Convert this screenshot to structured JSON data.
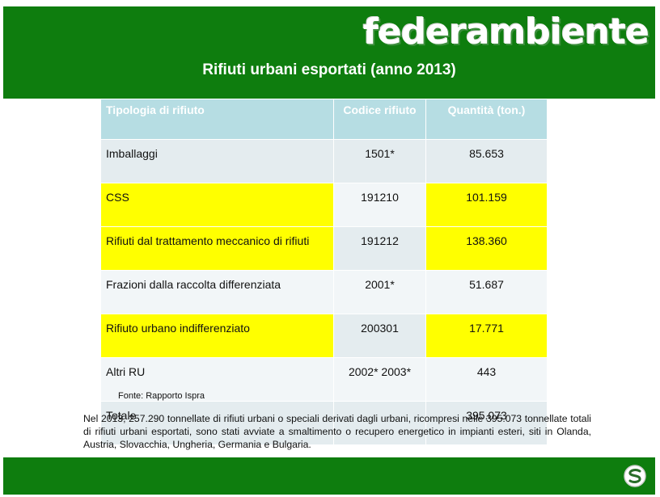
{
  "header": {
    "brand": "federambiente",
    "title": "Rifiuti urbani esportati (anno 2013)"
  },
  "table": {
    "columns": [
      "Tipologia di rifiuto",
      "Codice rifiuto",
      "Quantità (ton.)"
    ],
    "rows": [
      [
        "Imballaggi",
        "1501*",
        "85.653"
      ],
      [
        "CSS",
        "191210",
        "101.159"
      ],
      [
        "Rifiuti dal trattamento meccanico di rifiuti",
        "191212",
        "138.360"
      ],
      [
        "Frazioni dalla raccolta differenziata",
        "2001*",
        "51.687"
      ],
      [
        "Rifiuto urbano indifferenziato",
        "200301",
        "17.771"
      ],
      [
        "Altri RU",
        "2002* 2003*",
        "443"
      ],
      [
        "Totale",
        "",
        "395.073"
      ]
    ],
    "highlight_color": "#ffff00"
  },
  "source": "Fonte: Rapporto Ispra",
  "note": "Nel 2013, 257.290 tonnellate di rifiuti urbani o speciali derivati dagli urbani, ricompresi nelle 395.073 tonnellate totali di rifiuti urbani esportati, sono stati avviate a smaltimento o recupero energetico in impianti esteri, siti in Olanda, Austria, Slovacchia, Ungheria, Germania e Bulgaria.",
  "colors": {
    "banner": "#0e7d0e",
    "table_header": "#b6dde3"
  }
}
